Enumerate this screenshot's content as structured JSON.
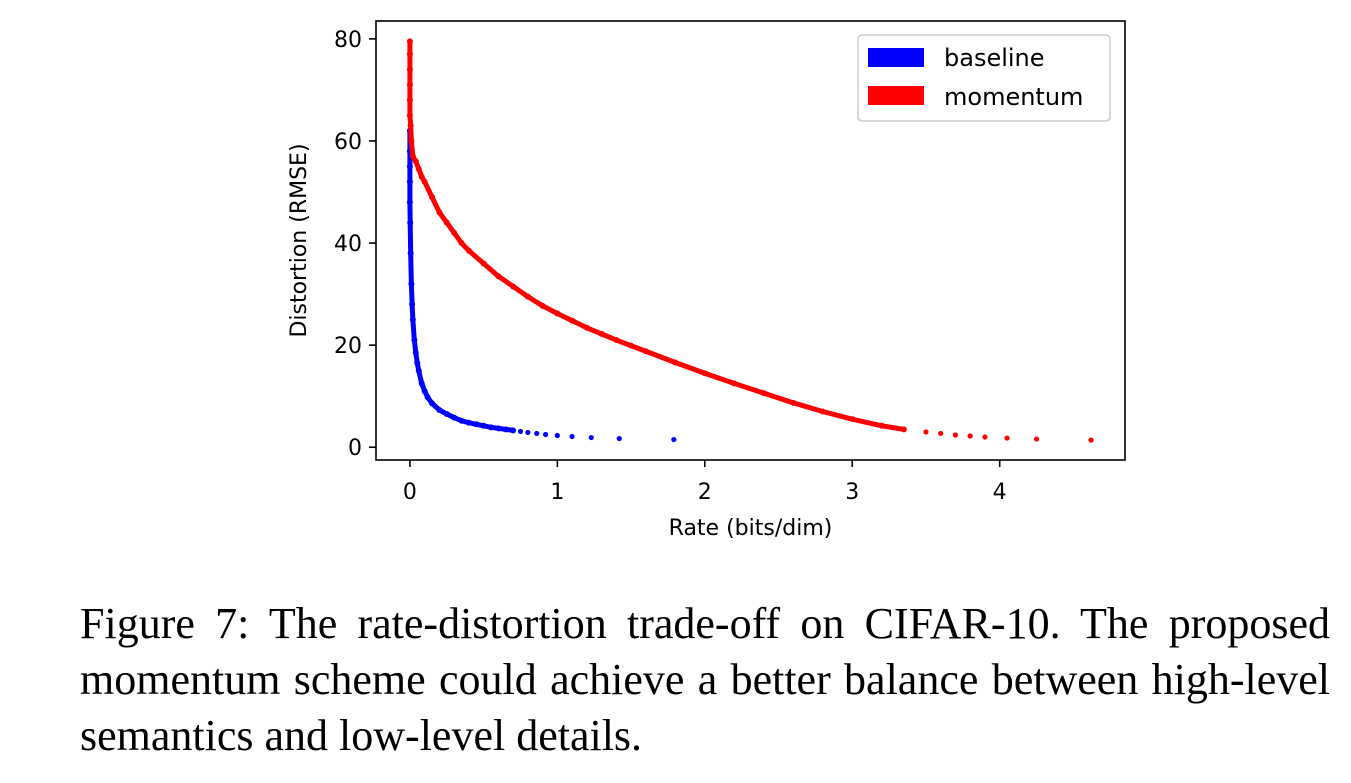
{
  "caption": "Figure 7: The rate-distortion trade-off on CIFAR-10. The proposed momentum scheme could achieve a better balance between high-level semantics and low-level details.",
  "chart_data": {
    "type": "scatter",
    "title": "",
    "xlabel": "Rate (bits/dim)",
    "ylabel": "Distortion (RMSE)",
    "xlim": [
      -0.23,
      4.85
    ],
    "ylim": [
      -2.5,
      83.5
    ],
    "xticks": [
      0,
      1,
      2,
      3,
      4
    ],
    "yticks": [
      0,
      20,
      40,
      60,
      80
    ],
    "grid": false,
    "legend": "top-right",
    "series": [
      {
        "name": "baseline",
        "color": "#0000ff",
        "x": [
          0,
          0,
          0,
          0,
          0,
          0.002,
          0.005,
          0.01,
          0.015,
          0.02,
          0.03,
          0.04,
          0.05,
          0.06,
          0.08,
          0.1,
          0.12,
          0.15,
          0.2,
          0.25,
          0.3,
          0.35,
          0.4,
          0.45,
          0.5,
          0.55,
          0.6,
          0.65,
          0.7,
          0.75,
          0.8,
          0.86,
          0.92,
          1.0,
          1.1,
          1.23,
          1.42,
          1.79
        ],
        "y": [
          62,
          58,
          55,
          52,
          48,
          44,
          38,
          32,
          28,
          25,
          21,
          18.5,
          16.5,
          15,
          12.5,
          11,
          9.8,
          8.6,
          7.3,
          6.5,
          5.8,
          5.2,
          4.8,
          4.5,
          4.2,
          3.9,
          3.7,
          3.5,
          3.3,
          3.1,
          2.9,
          2.7,
          2.5,
          2.3,
          2.1,
          1.9,
          1.7,
          1.5
        ]
      },
      {
        "name": "momentum",
        "color": "#ff0000",
        "x": [
          0,
          0,
          0,
          0,
          0,
          0,
          0.005,
          0.01,
          0.02,
          0.04,
          0.06,
          0.08,
          0.1,
          0.15,
          0.2,
          0.25,
          0.3,
          0.35,
          0.4,
          0.5,
          0.6,
          0.7,
          0.8,
          0.9,
          1.0,
          1.1,
          1.2,
          1.3,
          1.4,
          1.5,
          1.6,
          1.8,
          2.0,
          2.2,
          2.4,
          2.6,
          2.8,
          3.0,
          3.2,
          3.35,
          3.5,
          3.6,
          3.7,
          3.8,
          3.9,
          4.05,
          4.25,
          4.62
        ],
        "y": [
          79.5,
          77,
          74,
          71,
          68,
          65,
          63,
          60,
          57,
          56,
          54.5,
          53,
          52,
          49,
          46,
          44,
          42,
          40,
          38.5,
          36,
          33.5,
          31.5,
          29.5,
          27.7,
          26.2,
          24.8,
          23.4,
          22.2,
          21,
          19.9,
          18.8,
          16.6,
          14.5,
          12.5,
          10.6,
          8.7,
          7,
          5.5,
          4.2,
          3.5,
          3.0,
          2.7,
          2.4,
          2.2,
          2.0,
          1.8,
          1.6,
          1.4
        ]
      }
    ]
  }
}
